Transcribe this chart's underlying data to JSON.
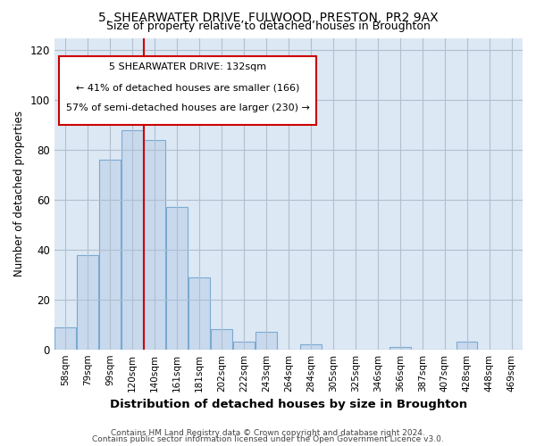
{
  "title1": "5, SHEARWATER DRIVE, FULWOOD, PRESTON, PR2 9AX",
  "title2": "Size of property relative to detached houses in Broughton",
  "xlabel": "Distribution of detached houses by size in Broughton",
  "ylabel": "Number of detached properties",
  "footnote1": "Contains HM Land Registry data © Crown copyright and database right 2024.",
  "footnote2": "Contains public sector information licensed under the Open Government Licence v3.0.",
  "categories": [
    "58sqm",
    "79sqm",
    "99sqm",
    "120sqm",
    "140sqm",
    "161sqm",
    "181sqm",
    "202sqm",
    "222sqm",
    "243sqm",
    "264sqm",
    "284sqm",
    "305sqm",
    "325sqm",
    "346sqm",
    "366sqm",
    "387sqm",
    "407sqm",
    "428sqm",
    "448sqm",
    "469sqm"
  ],
  "values": [
    9,
    38,
    76,
    88,
    84,
    57,
    29,
    8,
    3,
    7,
    0,
    2,
    0,
    0,
    0,
    1,
    0,
    0,
    3,
    0,
    0
  ],
  "bar_color": "#c8d9ee",
  "bar_edge_color": "#7aaad0",
  "reference_line_x": 4.0,
  "reference_line_color": "#cc0000",
  "box_text_line1": "5 SHEARWATER DRIVE: 132sqm",
  "box_text_line2": "← 41% of detached houses are smaller (166)",
  "box_text_line3": "57% of semi-detached houses are larger (230) →",
  "box_color": "#ffffff",
  "box_edge_color": "#cc0000",
  "ylim": [
    0,
    125
  ],
  "yticks": [
    0,
    20,
    40,
    60,
    80,
    100,
    120
  ],
  "plot_bg_color": "#dde8f5",
  "background_color": "#ffffff",
  "grid_color": "#b0bfcf"
}
